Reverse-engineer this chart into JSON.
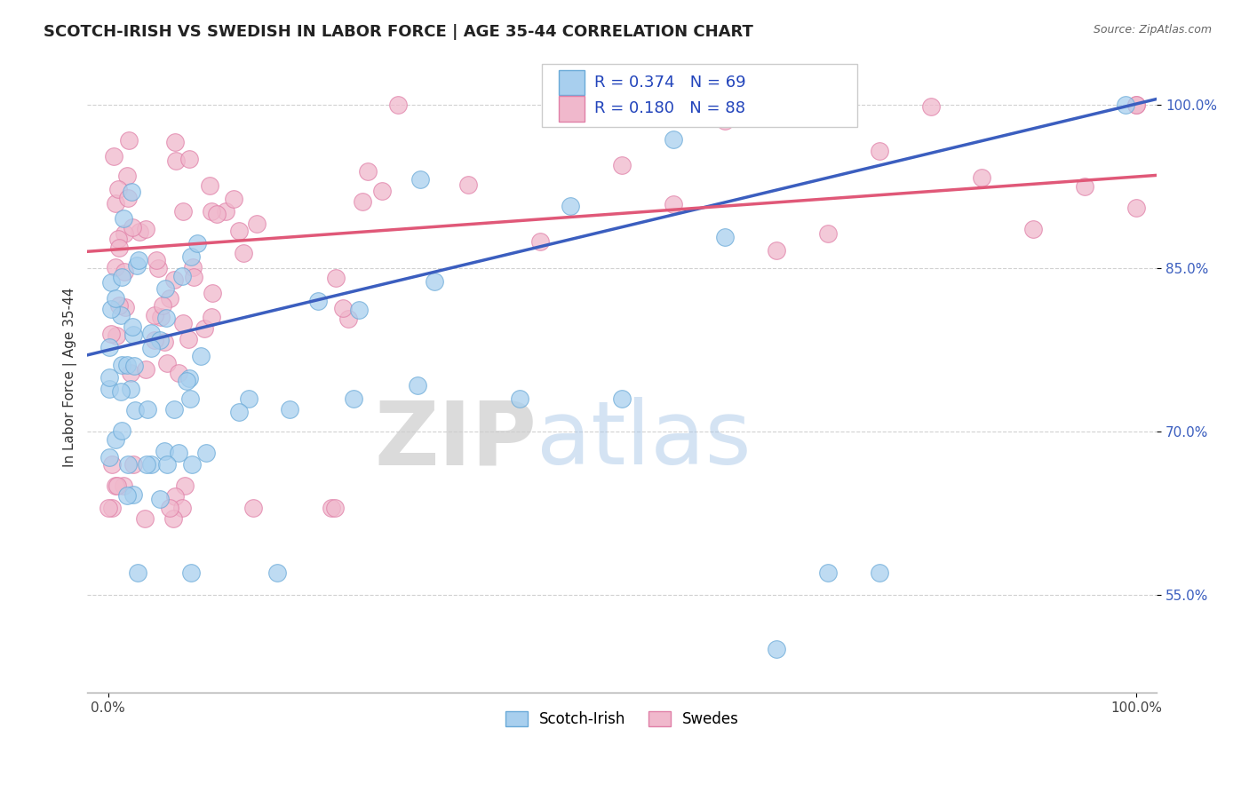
{
  "title": "SCOTCH-IRISH VS SWEDISH IN LABOR FORCE | AGE 35-44 CORRELATION CHART",
  "source_text": "Source: ZipAtlas.com",
  "ylabel": "In Labor Force | Age 35-44",
  "xlim": [
    -0.02,
    1.02
  ],
  "ylim": [
    0.46,
    1.04
  ],
  "x_ticks": [
    0.0,
    1.0
  ],
  "x_tick_labels": [
    "0.0%",
    "100.0%"
  ],
  "y_ticks": [
    0.55,
    0.7,
    0.85,
    1.0
  ],
  "y_tick_labels": [
    "55.0%",
    "70.0%",
    "85.0%",
    "100.0%"
  ],
  "scotch_irish_color": "#A8CFEE",
  "swedes_color": "#F0B8CC",
  "scotch_irish_edge": "#6AAAD8",
  "swedes_edge": "#E080A8",
  "blue_line_color": "#3B5EBF",
  "pink_line_color": "#E05878",
  "blue_line_y0": 0.77,
  "blue_line_y1": 1.005,
  "pink_line_y0": 0.865,
  "pink_line_y1": 0.935,
  "background_color": "#FFFFFF",
  "grid_color": "#CCCCCC",
  "watermark_zip": "ZIP",
  "watermark_atlas": "atlas",
  "title_fontsize": 13,
  "axis_label_fontsize": 11,
  "tick_fontsize": 11,
  "legend_blue_text1": "R = 0.374",
  "legend_blue_text2": "N = 69",
  "legend_pink_text1": "R = 0.180",
  "legend_pink_text2": "N = 88",
  "legend_text_color": "#2244BB",
  "legend_pink_text_color": "#DD3366"
}
